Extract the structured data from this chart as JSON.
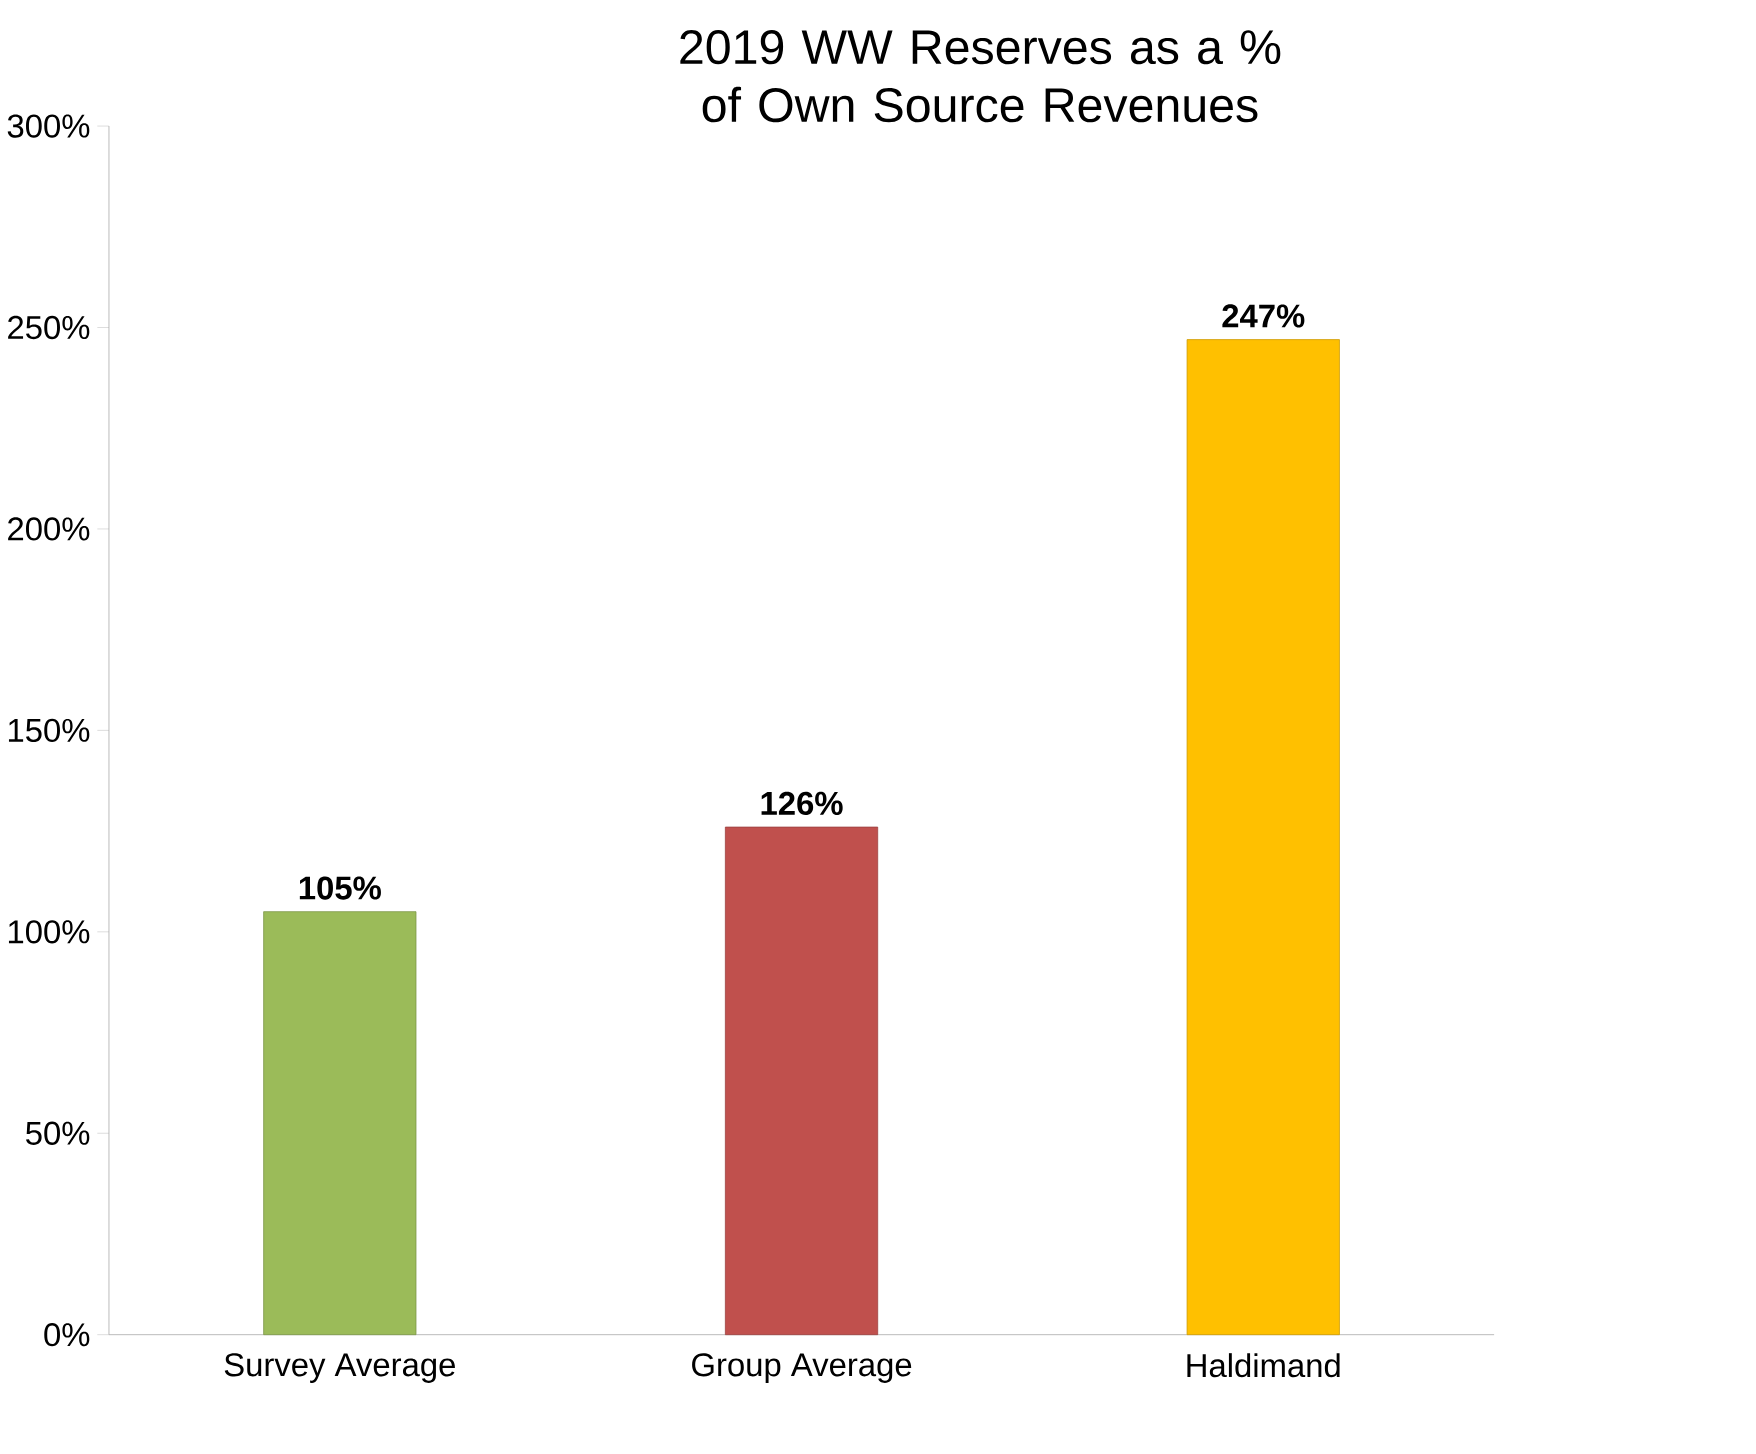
{
  "chart_data": {
    "type": "bar",
    "title": "2019 WW Reserves as a % of Own Source Revenues",
    "categories": [
      "Survey Average",
      "Group Average",
      "Haldimand"
    ],
    "values": [
      105,
      126,
      247
    ],
    "colors": [
      "#9bbb59",
      "#c0504d",
      "#ffc000"
    ],
    "value_labels": [
      "105%",
      "126%",
      "247%"
    ],
    "ylim": [
      0,
      300
    ],
    "yticks": [
      {
        "value": 0,
        "label": "0%"
      },
      {
        "value": 50,
        "label": "50%"
      },
      {
        "value": 100,
        "label": "100%"
      },
      {
        "value": 150,
        "label": "150%"
      },
      {
        "value": 200,
        "label": "200%"
      },
      {
        "value": 250,
        "label": "250%"
      },
      {
        "value": 300,
        "label": "300%"
      }
    ]
  }
}
